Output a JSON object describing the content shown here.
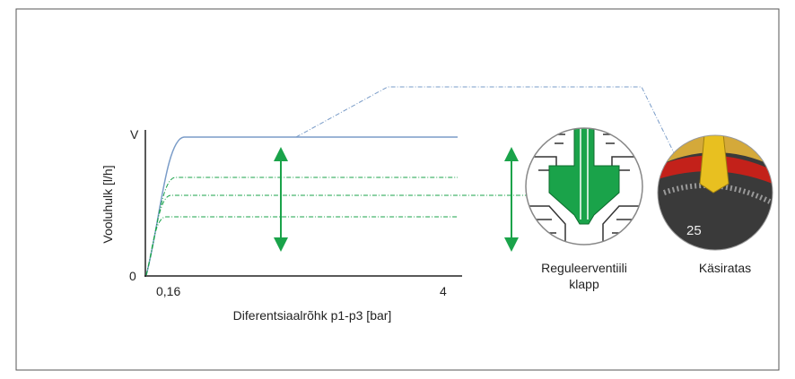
{
  "chart": {
    "y_axis_label": "Vooluhulk [l/h]",
    "y_top_label": "V",
    "y_bottom_label": "0",
    "x_tick_left": "0,16",
    "x_tick_right": "4",
    "x_axis_label": "Diferentsiaalrõhk p1-p3 [bar]"
  },
  "components": [
    {
      "label_lines": [
        "Reguleerventiili",
        "klapp"
      ]
    },
    {
      "label_lines": [
        "Käsiratas"
      ]
    }
  ],
  "handwheel_scale": "25"
}
